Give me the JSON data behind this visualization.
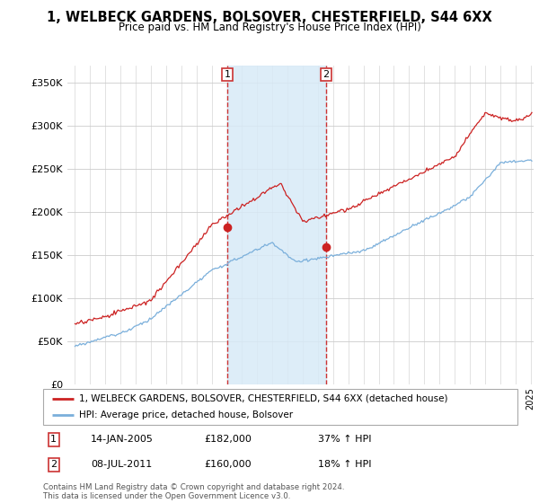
{
  "title": "1, WELBECK GARDENS, BOLSOVER, CHESTERFIELD, S44 6XX",
  "subtitle": "Price paid vs. HM Land Registry's House Price Index (HPI)",
  "sale1_date": "14-JAN-2005",
  "sale1_price": 182000,
  "sale1_hpi": "37% ↑ HPI",
  "sale1_x": 2005.04,
  "sale1_y": 182000,
  "sale2_date": "08-JUL-2011",
  "sale2_price": 160000,
  "sale2_hpi": "18% ↑ HPI",
  "sale2_x": 2011.52,
  "sale2_y": 160000,
  "legend_line1": "1, WELBECK GARDENS, BOLSOVER, CHESTERFIELD, S44 6XX (detached house)",
  "legend_line2": "HPI: Average price, detached house, Bolsover",
  "footer": "Contains HM Land Registry data © Crown copyright and database right 2024.\nThis data is licensed under the Open Government Licence v3.0.",
  "hpi_color": "#7aafdb",
  "price_color": "#cc2222",
  "vline_color": "#cc3333",
  "shade_color": "#d8eaf7",
  "ylim": [
    0,
    370000
  ],
  "yticks": [
    0,
    50000,
    100000,
    150000,
    200000,
    250000,
    300000,
    350000
  ],
  "xlim_start": 1994.5,
  "xlim_end": 2025.2
}
